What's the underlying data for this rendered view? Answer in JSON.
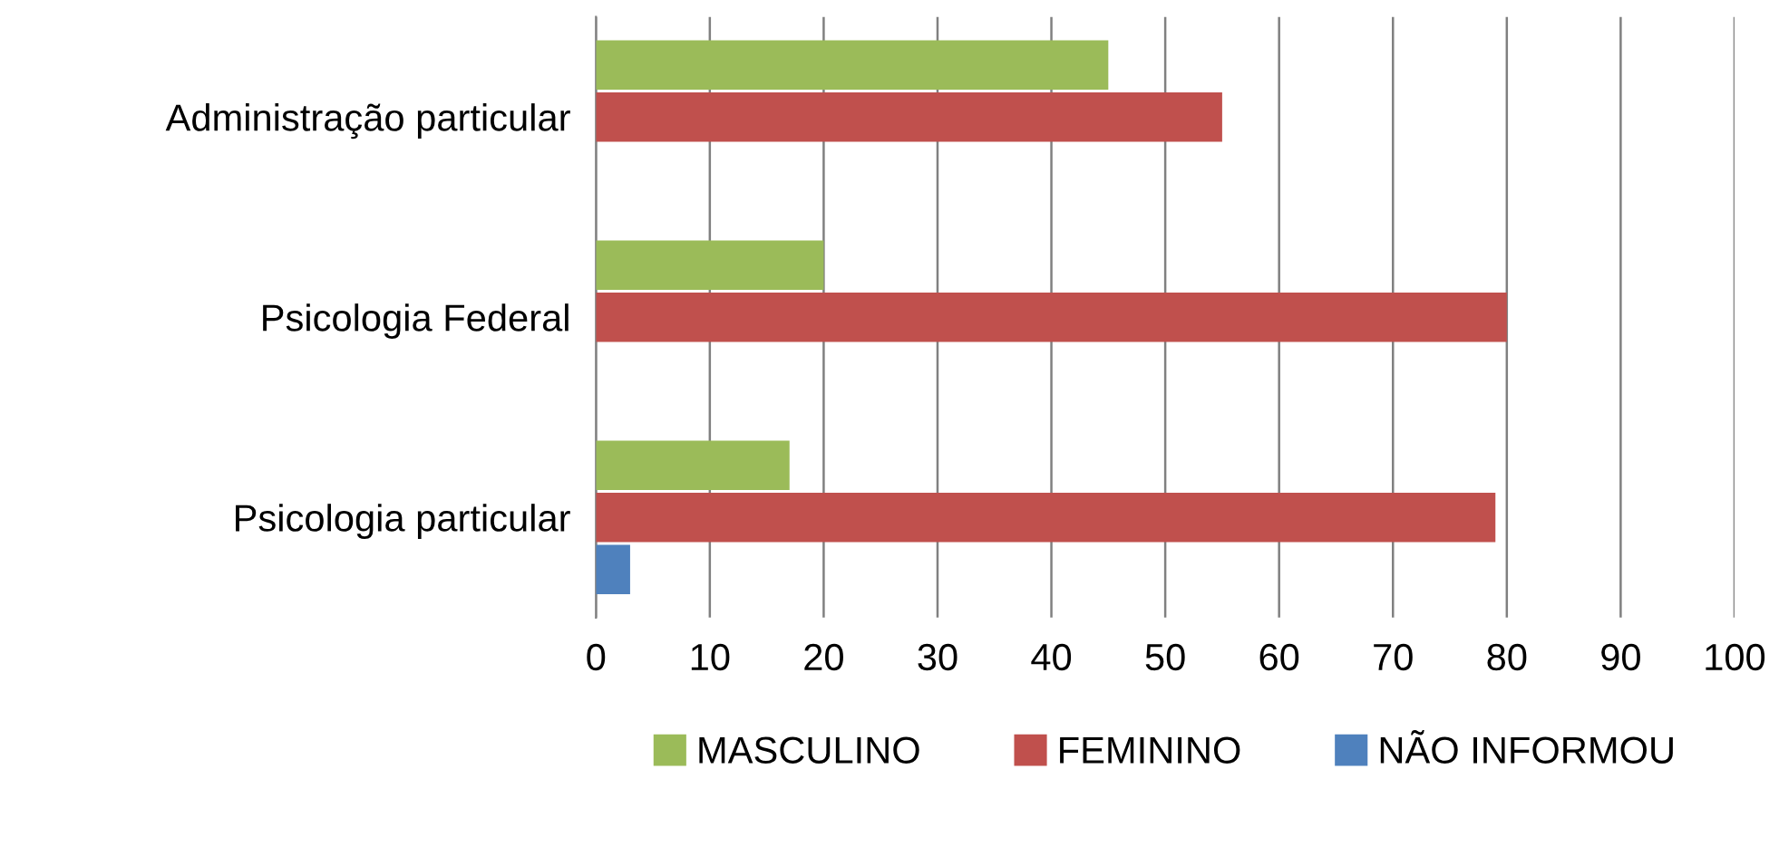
{
  "chart_data": {
    "type": "bar",
    "orientation": "horizontal",
    "categories": [
      "Administração particular",
      "Psicologia Federal",
      "Psicologia particular"
    ],
    "series": [
      {
        "name": "MASCULINO",
        "color": "#9bbb59",
        "values": [
          45,
          20,
          17
        ]
      },
      {
        "name": "FEMININO",
        "color": "#c0504d",
        "values": [
          55,
          80,
          79
        ]
      },
      {
        "name": "NÃO INFORMOU",
        "color": "#4f81bd",
        "values": [
          null,
          null,
          3
        ]
      }
    ],
    "xlim": [
      0,
      100
    ],
    "xticks": [
      0,
      10,
      20,
      30,
      40,
      50,
      60,
      70,
      80,
      90,
      100
    ],
    "grid": "x",
    "legend": "bottom"
  }
}
